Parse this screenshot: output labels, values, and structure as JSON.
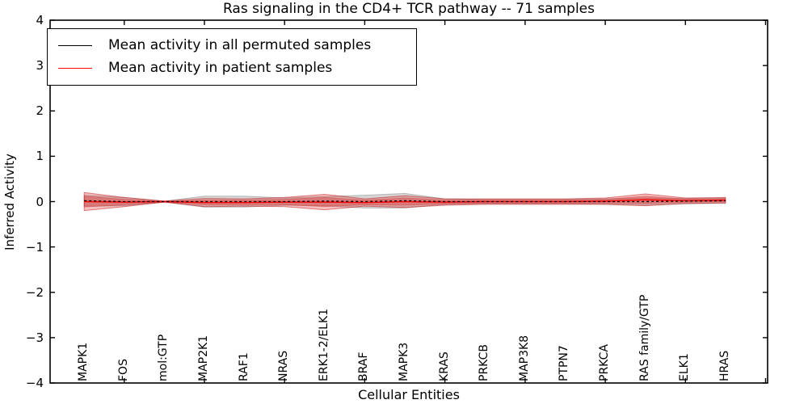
{
  "figure": {
    "title": "Ras signaling in the CD4+ TCR pathway -- 71 samples",
    "xlabel": "Cellular Entities",
    "ylabel": "Inferred Activity"
  },
  "legend": {
    "position": "upper left",
    "items": [
      {
        "label": "Mean activity in all permuted samples",
        "color": "#000000",
        "line_style": "solid"
      },
      {
        "label": "Mean activity in patient samples",
        "color": "#ff0000",
        "line_style": "solid"
      }
    ]
  },
  "chart_data": {
    "type": "line",
    "title": "Ras signaling in the CD4+ TCR pathway -- 71 samples",
    "xlabel": "Cellular Entities",
    "ylabel": "Inferred Activity",
    "grid": false,
    "legend_position": "upper left",
    "xlim": [
      -0.85,
      17.05
    ],
    "ylim": [
      -4,
      4
    ],
    "yticks": [
      4,
      3,
      2,
      1,
      0,
      -1,
      -2,
      -3,
      -4
    ],
    "xtick_positions": [
      1,
      3,
      5,
      7,
      9,
      11,
      13,
      15,
      17
    ],
    "categories": [
      "MAPK1",
      "FOS",
      "mol:GTP",
      "MAP2K1",
      "RAF1",
      "NRAS",
      "ERK1-2/ELK1",
      "BRAF",
      "MAPK3",
      "KRAS",
      "PRKCB",
      "MAP3K8",
      "PTPN7",
      "PRKCA",
      "RAS family/GTP",
      "ELK1",
      "HRAS"
    ],
    "series": [
      {
        "name": "Mean activity in all permuted samples",
        "color": "#000000",
        "line_style": "dashed-on-plot",
        "values": [
          0.02,
          0.0,
          0.0,
          0.0,
          0.0,
          0.0,
          0.01,
          0.0,
          0.02,
          0.0,
          0.0,
          0.0,
          0.0,
          0.0,
          0.0,
          0.01,
          0.02
        ],
        "band_halfwidth": [
          0.12,
          0.09,
          0.01,
          0.12,
          0.12,
          0.08,
          0.1,
          0.14,
          0.16,
          0.06,
          0.05,
          0.05,
          0.05,
          0.06,
          0.08,
          0.06,
          0.06
        ],
        "band_color": "#828282"
      },
      {
        "name": "Mean activity in patient samples",
        "color": "#ff0000",
        "line_style": "solid",
        "values": [
          0.0,
          -0.01,
          0.0,
          -0.02,
          -0.02,
          -0.01,
          -0.01,
          -0.02,
          0.0,
          -0.01,
          0.0,
          0.0,
          0.0,
          0.01,
          0.04,
          0.02,
          0.03
        ],
        "band_halfwidth": [
          0.2,
          0.1,
          0.01,
          0.09,
          0.08,
          0.1,
          0.17,
          0.08,
          0.13,
          0.07,
          0.06,
          0.06,
          0.06,
          0.07,
          0.13,
          0.06,
          0.06
        ],
        "band_inner_halfwidth": [
          0.12,
          0.06,
          0.005,
          0.05,
          0.05,
          0.06,
          0.1,
          0.05,
          0.08,
          0.04,
          0.035,
          0.035,
          0.035,
          0.04,
          0.08,
          0.035,
          0.035
        ],
        "band_color": "#dd2d2d"
      }
    ]
  }
}
